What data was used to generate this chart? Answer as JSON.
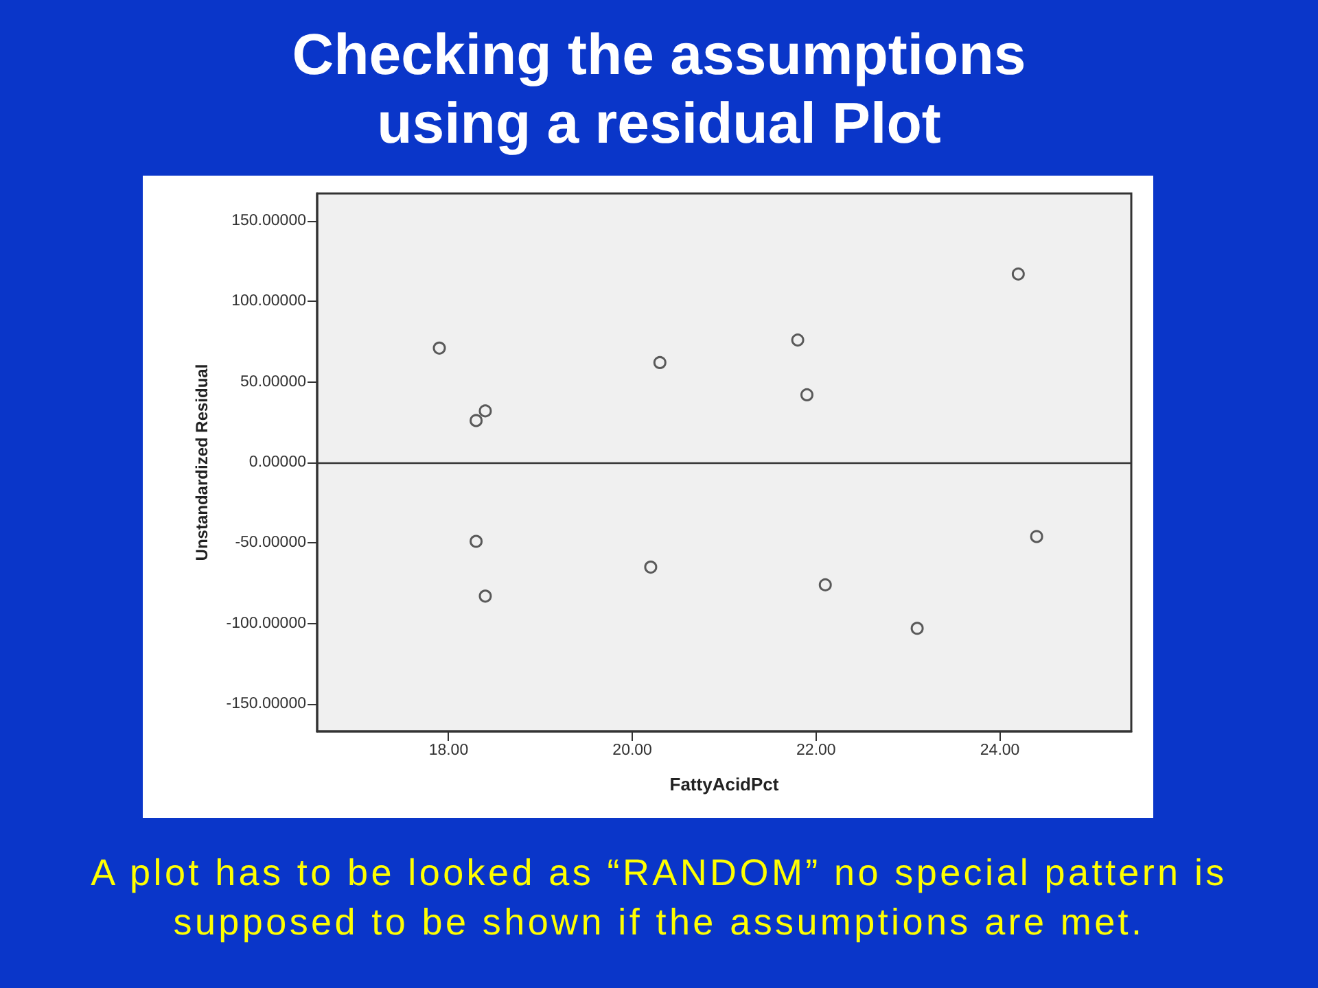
{
  "chart_data": {
    "type": "scatter",
    "title": "Checking the assumptions using a residual Plot",
    "xlabel": "FattyAcidPct",
    "ylabel": "Unstandardized Residual",
    "annotations": [
      "A plot has to be looked as “RANDOM” no special pattern is supposed to be shown if the assumptions are met."
    ],
    "x": [
      17.9,
      18.3,
      18.4,
      20.3,
      21.8,
      21.9,
      24.2,
      18.3,
      18.4,
      20.2,
      22.1,
      23.1,
      24.4
    ],
    "values": [
      71,
      26,
      32,
      62,
      76,
      42,
      117,
      -49,
      -83,
      -65,
      -76,
      -103,
      -46
    ],
    "color": "#333333",
    "marker": "circle",
    "xlim": [
      16.57,
      25.43
    ],
    "ylim": [
      -167,
      167
    ],
    "xticks": [
      {
        "value": 18,
        "label": "18.00"
      },
      {
        "value": 20,
        "label": "20.00"
      },
      {
        "value": 22,
        "label": "22.00"
      },
      {
        "value": 24,
        "label": "24.00"
      }
    ],
    "yticks": [
      {
        "value": -150,
        "label": "-150.00000"
      },
      {
        "value": -100,
        "label": "-100.00000"
      },
      {
        "value": -50,
        "label": "-50.00000"
      },
      {
        "value": 0,
        "label": "0.00000"
      },
      {
        "value": 50,
        "label": "50.00000"
      },
      {
        "value": 100,
        "label": "100.00000"
      },
      {
        "value": 150,
        "label": "150.00000"
      }
    ],
    "ref_lines": [
      {
        "axis": "y",
        "value": 0,
        "color": "#333333"
      }
    ]
  }
}
